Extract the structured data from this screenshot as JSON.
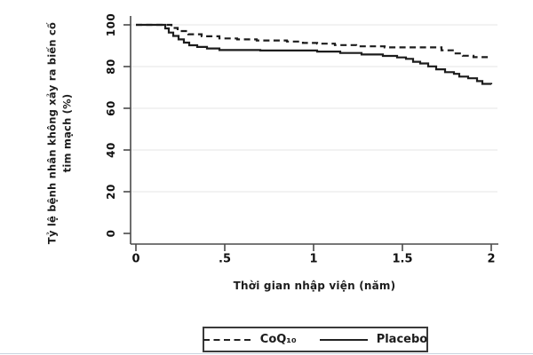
{
  "window": {
    "bottom_border_color": "#c9d5e0"
  },
  "chart_data": {
    "type": "line",
    "subtype": "kaplan-meier-step",
    "title": "",
    "xlabel": "Thời gian nhập viện (năm)",
    "ylabel": "Tỷ lệ bệnh nhân không xảy ra biến cố\ntim mạch (%)",
    "xlim": [
      0,
      2.05
    ],
    "ylim": [
      0,
      100
    ],
    "grid": "horizontal",
    "grid_color": "#e9e9e9",
    "axis_color": "#4a4a4a",
    "tick_color": "#4a4a4a",
    "legend_position": "bottom-center",
    "x_ticks": [
      {
        "value": 0,
        "label": "0"
      },
      {
        "value": 0.5,
        "label": ".5"
      },
      {
        "value": 1,
        "label": "1"
      },
      {
        "value": 1.5,
        "label": "1.5"
      },
      {
        "value": 2,
        "label": "2"
      }
    ],
    "y_ticks": [
      {
        "value": 0,
        "label": "0"
      },
      {
        "value": 20,
        "label": "20"
      },
      {
        "value": 40,
        "label": "40"
      },
      {
        "value": 60,
        "label": "60"
      },
      {
        "value": 80,
        "label": "80"
      },
      {
        "value": 100,
        "label": "100"
      }
    ],
    "series": [
      {
        "name": "CoQ₁₀",
        "line_style": "dashed",
        "color": "#1c1c1c",
        "points": [
          [
            0,
            100
          ],
          [
            0.18,
            100
          ],
          [
            0.2,
            98.5
          ],
          [
            0.235,
            97
          ],
          [
            0.295,
            95.5
          ],
          [
            0.37,
            94.5
          ],
          [
            0.47,
            93.5
          ],
          [
            0.57,
            93
          ],
          [
            0.68,
            92.5
          ],
          [
            0.85,
            92
          ],
          [
            0.94,
            91.3
          ],
          [
            1.02,
            91
          ],
          [
            1.12,
            90.3
          ],
          [
            1.24,
            89.7
          ],
          [
            1.4,
            89.2
          ],
          [
            1.7,
            89.2
          ],
          [
            1.72,
            87.8
          ],
          [
            1.79,
            86.3
          ],
          [
            1.84,
            85.2
          ],
          [
            1.9,
            84.5
          ],
          [
            2.0,
            84.3
          ]
        ]
      },
      {
        "name": "Placebo",
        "line_style": "solid",
        "color": "#1c1c1c",
        "points": [
          [
            0,
            100
          ],
          [
            0.15,
            100
          ],
          [
            0.165,
            98.3
          ],
          [
            0.185,
            96.3
          ],
          [
            0.21,
            94.7
          ],
          [
            0.24,
            93
          ],
          [
            0.27,
            91.5
          ],
          [
            0.3,
            90.2
          ],
          [
            0.345,
            89.4
          ],
          [
            0.4,
            88.7
          ],
          [
            0.47,
            87.9
          ],
          [
            0.7,
            87.7
          ],
          [
            1.02,
            87.2
          ],
          [
            1.15,
            86.5
          ],
          [
            1.27,
            85.8
          ],
          [
            1.39,
            85.1
          ],
          [
            1.47,
            84.4
          ],
          [
            1.52,
            83.7
          ],
          [
            1.56,
            82.3
          ],
          [
            1.6,
            81.5
          ],
          [
            1.645,
            80.1
          ],
          [
            1.69,
            78.7
          ],
          [
            1.74,
            77.3
          ],
          [
            1.79,
            76.5
          ],
          [
            1.82,
            75.2
          ],
          [
            1.87,
            74.4
          ],
          [
            1.92,
            73
          ],
          [
            1.95,
            71.7
          ],
          [
            2.0,
            71.5
          ]
        ]
      }
    ]
  }
}
